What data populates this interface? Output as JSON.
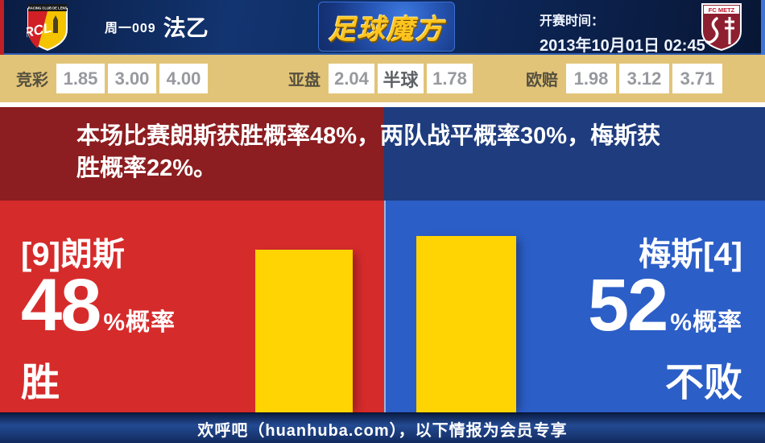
{
  "header": {
    "match_code": "周一009",
    "league": "法乙",
    "brand": "足球魔方",
    "kickoff_label": "开赛时间：",
    "kickoff_time": "2013年10月01日 02:45",
    "home_badge": {
      "abbr": "RCL",
      "banner": "RACING CLUB DE LENS"
    },
    "away_badge": {
      "name": "FC METZ"
    }
  },
  "odds_bar": {
    "groups": [
      {
        "label": "竞彩",
        "values": [
          "1.85",
          "3.00",
          "4.00"
        ]
      },
      {
        "label": "亚盘",
        "values": [
          "2.04",
          "半球",
          "1.78"
        ]
      },
      {
        "label": "欧赔",
        "values": [
          "1.98",
          "3.12",
          "3.71"
        ]
      }
    ]
  },
  "summary": {
    "text": "本场比赛朗斯获胜概率48%，两队战平概率30%，梅斯获胜概率22%。"
  },
  "home": {
    "team": "[9]朗斯",
    "percent": "48",
    "suffix": "%概率",
    "outcome": "胜",
    "percent_value": 48
  },
  "away": {
    "team": "梅斯[4]",
    "percent": "52",
    "suffix": "%概率",
    "outcome": "不败",
    "percent_value": 52
  },
  "footer": {
    "text": "欢呼吧（huanhuba.com），以下情报为会员专享"
  },
  "colors": {
    "home_red": "#d62b2b",
    "home_red_dark": "#8c1d20",
    "away_blue": "#2b5ec7",
    "away_blue_dark": "#1e3c7e",
    "bar_yellow": "#ffd402",
    "odds_bar_bg": "#e2c478",
    "brand_gold": "#fdc520",
    "header_navy": "#0e2a60",
    "footer_navy": "#234a92"
  },
  "chart_data": {
    "type": "bar",
    "categories": [
      "[9]朗斯 胜",
      "梅斯[4] 不败"
    ],
    "values": [
      48,
      52
    ],
    "ylim": [
      0,
      100
    ],
    "bar_color": "#ffd402"
  }
}
